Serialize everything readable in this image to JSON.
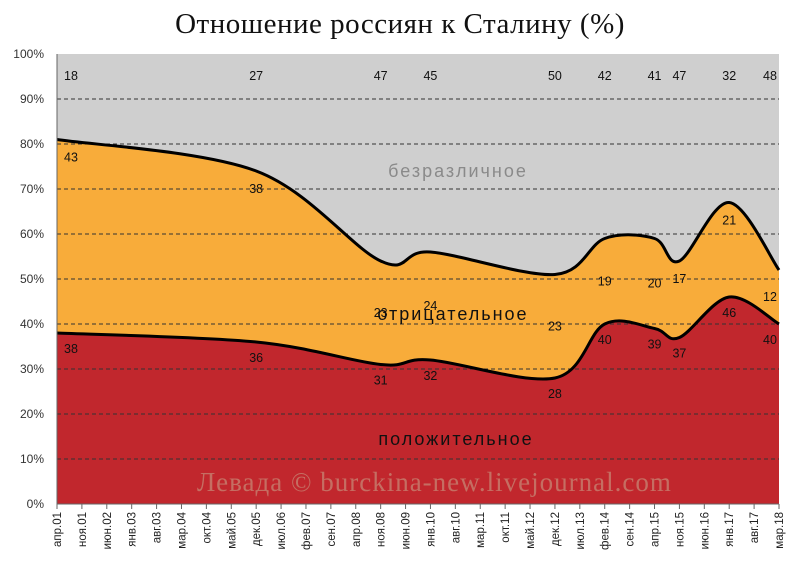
{
  "chart_data": {
    "type": "area",
    "title": "Отношение россиян к Сталину (%)",
    "ylim": [
      0,
      100
    ],
    "yticks": [
      "0%",
      "10%",
      "20%",
      "30%",
      "40%",
      "50%",
      "60%",
      "70%",
      "80%",
      "90%",
      "100%"
    ],
    "categories": [
      "апр.01",
      "ноя.01",
      "июн.02",
      "янв.03",
      "авг.03",
      "мар.04",
      "окт.04",
      "май.05",
      "дек.05",
      "июл.06",
      "фев.07",
      "сен.07",
      "апр.08",
      "ноя.08",
      "июн.09",
      "янв.10",
      "авг.10",
      "мар.11",
      "окт.11",
      "май.12",
      "дек.12",
      "июл.13",
      "фев.14",
      "сен.14",
      "апр.15",
      "ноя.15",
      "июн.16",
      "янв.17",
      "авг.17",
      "мар.18"
    ],
    "series": [
      {
        "name": "положительное",
        "color": "#c1272d",
        "points": [
          {
            "x": "апр.01",
            "y": 38
          },
          {
            "x": "дек.05",
            "y": 36
          },
          {
            "x": "ноя.08",
            "y": 31
          },
          {
            "x": "янв.10",
            "y": 32
          },
          {
            "x": "дек.12",
            "y": 28
          },
          {
            "x": "фев.14",
            "y": 40
          },
          {
            "x": "апр.15",
            "y": 39
          },
          {
            "x": "ноя.15",
            "y": 37
          },
          {
            "x": "янв.17",
            "y": 46
          },
          {
            "x": "мар.18",
            "y": 40
          }
        ]
      },
      {
        "name": "отрицательное",
        "color": "#f8ac3a",
        "points": [
          {
            "x": "апр.01",
            "y": 43
          },
          {
            "x": "дек.05",
            "y": 38
          },
          {
            "x": "ноя.08",
            "y": 23
          },
          {
            "x": "янв.10",
            "y": 24
          },
          {
            "x": "дек.12",
            "y": 23
          },
          {
            "x": "фев.14",
            "y": 19
          },
          {
            "x": "апр.15",
            "y": 20
          },
          {
            "x": "ноя.15",
            "y": 17
          },
          {
            "x": "янв.17",
            "y": 21
          },
          {
            "x": "мар.18",
            "y": 12
          }
        ]
      },
      {
        "name": "безразличное",
        "color": "#cfcfcf",
        "points": [
          {
            "x": "апр.01",
            "y": 18
          },
          {
            "x": "дек.05",
            "y": 27
          },
          {
            "x": "ноя.08",
            "y": 47
          },
          {
            "x": "янв.10",
            "y": 45
          },
          {
            "x": "дек.12",
            "y": 50
          },
          {
            "x": "фев.14",
            "y": 42
          },
          {
            "x": "апр.15",
            "y": 41
          },
          {
            "x": "ноя.15",
            "y": 47
          },
          {
            "x": "янв.17",
            "y": 32
          },
          {
            "x": "мар.18",
            "y": 48
          }
        ]
      }
    ],
    "region_labels": {
      "positive": "положительное",
      "negative": "отрицательное",
      "indifferent": "безразличное"
    },
    "grid": true,
    "watermark": "Левада © burckina-new.livejournal.com"
  }
}
